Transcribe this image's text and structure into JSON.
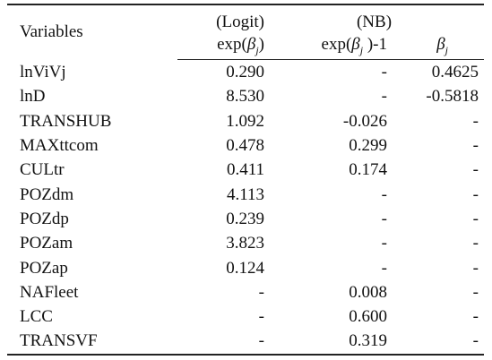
{
  "table": {
    "header": {
      "variables": "Variables",
      "logit": "(Logit)",
      "nb": "(NB)",
      "columns": [
        {
          "pre": "exp(",
          "beta": "β",
          "sub": "j",
          "post": ")"
        },
        {
          "pre": "exp(",
          "beta": "β",
          "sub": "j",
          "post": " )-1"
        },
        {
          "beta": "β",
          "sub": "j"
        }
      ]
    },
    "rows": [
      [
        "lnViVj",
        "0.290",
        "-",
        "0.4625"
      ],
      [
        "lnD",
        "8.530",
        "-",
        "-0.5818"
      ],
      [
        "TRANSHUB",
        "1.092",
        "-0.026",
        "-"
      ],
      [
        "MAXttcom",
        "0.478",
        "0.299",
        "-"
      ],
      [
        "CULtr",
        "0.411",
        "0.174",
        "-"
      ],
      [
        "POZdm",
        "4.113",
        "-",
        "-"
      ],
      [
        "POZdp",
        "0.239",
        "-",
        "-"
      ],
      [
        "POZam",
        "3.823",
        "-",
        "-"
      ],
      [
        "POZap",
        "0.124",
        "-",
        "-"
      ],
      [
        "NAFleet",
        "-",
        "0.008",
        "-"
      ],
      [
        "LCC",
        "-",
        "0.600",
        "-"
      ],
      [
        "TRANSVF",
        "-",
        "0.319",
        "-"
      ]
    ]
  }
}
